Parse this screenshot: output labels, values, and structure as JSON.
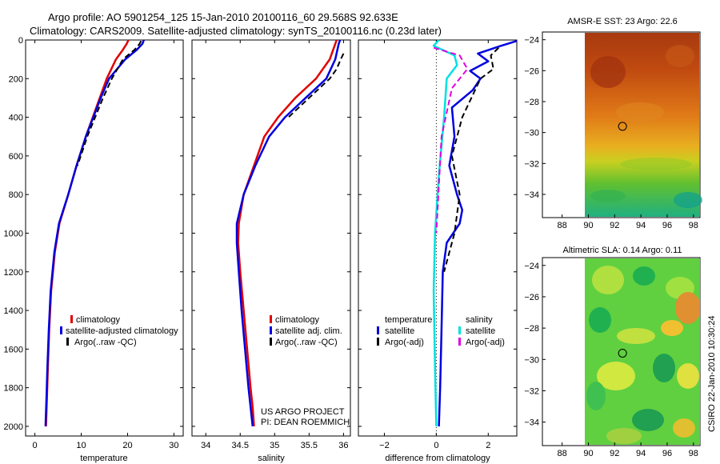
{
  "header": {
    "line1": "Argo profile: AO 5901254_125 15-Jan-2010 20100116_60 29.568S 92.633E",
    "line2": "Climatology: CARS2009. Satellite-adjusted climatology: synTS_20100116.nc (0.23d later)"
  },
  "colors": {
    "climatology": "#e00000",
    "satellite": "#0000e0",
    "argo": "#000000",
    "sal_satellite": "#00e0e0",
    "sal_argo": "#e000e0"
  },
  "chart_data": [
    {
      "type": "line",
      "id": "temperature",
      "xlabel": "temperature",
      "ylabel": "",
      "xlim": [
        -2,
        32
      ],
      "ylim": [
        2050,
        0
      ],
      "xticks": [
        0,
        10,
        20,
        30
      ],
      "yticks": [
        0,
        200,
        400,
        600,
        800,
        1000,
        1200,
        1400,
        1600,
        1800,
        2000
      ],
      "series": [
        {
          "name": "climatology",
          "color": "#e00000",
          "dashed": false,
          "x": [
            20.2,
            19.8,
            19.0,
            17.5,
            15.5,
            14.0,
            12.5,
            11.0,
            9.0,
            7.2,
            5.3,
            4.3,
            3.5,
            3.1,
            2.8,
            2.6,
            2.4
          ],
          "y": [
            0,
            20,
            50,
            100,
            200,
            300,
            400,
            500,
            650,
            800,
            950,
            1100,
            1300,
            1500,
            1700,
            1850,
            2000
          ]
        },
        {
          "name": "satellite-adjusted climatology",
          "color": "#0000e0",
          "dashed": false,
          "x": [
            23.5,
            23.2,
            22.0,
            19.5,
            16.0,
            14.2,
            12.6,
            11.0,
            9.0,
            7.2,
            5.2,
            4.2,
            3.4,
            3.0,
            2.7,
            2.5,
            2.3
          ],
          "y": [
            0,
            20,
            50,
            100,
            200,
            300,
            400,
            500,
            650,
            800,
            950,
            1100,
            1300,
            1500,
            1700,
            1850,
            2000
          ]
        },
        {
          "name": "Argo(..raw -QC)",
          "color": "#000000",
          "dashed": true,
          "x": [
            22.9,
            22.6,
            21.5,
            19.0,
            16.6,
            14.7,
            13.0,
            11.3,
            9.2
          ],
          "y": [
            5,
            20,
            50,
            100,
            200,
            300,
            400,
            500,
            650
          ]
        }
      ],
      "legend": [
        "climatology",
        "satellite-adjusted climatology",
        "Argo(..raw -QC)"
      ]
    },
    {
      "type": "line",
      "id": "salinity",
      "xlabel": "salinity",
      "ylabel": "",
      "xlim": [
        33.8,
        36.1
      ],
      "ylim": [
        2050,
        0
      ],
      "xticks": [
        34,
        34.5,
        35,
        35.5,
        36
      ],
      "series": [
        {
          "name": "climatology",
          "color": "#e00000",
          "dashed": false,
          "x": [
            35.9,
            35.88,
            35.8,
            35.6,
            35.3,
            35.05,
            34.85,
            34.7,
            34.55,
            34.48,
            34.47,
            34.5,
            34.55,
            34.6,
            34.65,
            34.68,
            34.7
          ],
          "y": [
            0,
            20,
            100,
            200,
            300,
            400,
            500,
            650,
            800,
            950,
            1050,
            1200,
            1400,
            1600,
            1800,
            1900,
            2000
          ]
        },
        {
          "name": "satellite adj. clim.",
          "color": "#0000e0",
          "dashed": false,
          "x": [
            35.95,
            35.93,
            35.88,
            35.75,
            35.45,
            35.15,
            34.92,
            34.72,
            34.55,
            34.45,
            34.45,
            34.48,
            34.52,
            34.57,
            34.62,
            34.65,
            34.68
          ],
          "y": [
            0,
            20,
            100,
            200,
            300,
            400,
            500,
            650,
            800,
            950,
            1050,
            1200,
            1400,
            1600,
            1800,
            1900,
            2000
          ]
        },
        {
          "name": "Argo(..raw -QC)",
          "color": "#000000",
          "dashed": true,
          "x": [
            36.0,
            35.96,
            35.9,
            35.8,
            35.5,
            35.2
          ],
          "y": [
            70,
            100,
            150,
            200,
            300,
            400
          ]
        }
      ],
      "legend": [
        "climatology",
        "satellite adj. clim.",
        "Argo(..raw -QC)"
      ],
      "annotation": [
        "US ARGO PROJECT",
        "PI: DEAN ROEMMICH"
      ]
    },
    {
      "type": "line",
      "id": "difference",
      "xlabel": "difference from climatology",
      "ylabel": "",
      "xlim": [
        -3,
        3.1
      ],
      "ylim": [
        2050,
        0
      ],
      "xticks": [
        -2,
        0,
        2
      ],
      "series": [
        {
          "name": "temperature satellite",
          "color": "#0000e0",
          "dashed": false,
          "x": [
            3.1,
            2.5,
            1.6,
            2.0,
            1.3,
            1.7,
            1.4,
            0.6,
            0.7,
            0.5,
            0.8,
            1.0,
            0.9,
            0.4,
            0.25,
            0.2,
            0.15,
            0.1
          ],
          "y": [
            5,
            30,
            70,
            110,
            160,
            200,
            260,
            350,
            500,
            650,
            800,
            880,
            950,
            1050,
            1200,
            1500,
            1800,
            2000
          ]
        },
        {
          "name": "temperature Argo(-adj)",
          "color": "#000000",
          "dashed": true,
          "x": [
            2.4,
            2.1,
            2.2,
            1.7,
            1.0,
            0.6,
            0.9,
            0.7,
            0.3
          ],
          "y": [
            40,
            80,
            150,
            200,
            400,
            600,
            800,
            1000,
            1200
          ]
        },
        {
          "name": "salinity satellite",
          "color": "#00e0e0",
          "dashed": false,
          "x": [
            0.1,
            -0.1,
            0.7,
            0.8,
            0.4,
            0.3,
            0.1,
            -0.05,
            -0.1,
            -0.05,
            0.0
          ],
          "y": [
            0,
            30,
            80,
            130,
            200,
            400,
            700,
            1000,
            1300,
            1700,
            2000
          ]
        },
        {
          "name": "salinity Argo(-adj)",
          "color": "#e000e0",
          "dashed": true,
          "x": [
            -0.1,
            0.9,
            1.2,
            0.6,
            0.2,
            0.0
          ],
          "y": [
            40,
            80,
            150,
            250,
            500,
            1000
          ]
        }
      ],
      "legend_title_left": "temperature",
      "legend_title_right": "salinity",
      "legend_left": [
        "satellite",
        "Argo(-adj)"
      ],
      "legend_right": [
        "satellite",
        "Argo(-adj)"
      ]
    },
    {
      "type": "heatmap",
      "id": "sst_map",
      "title": "AMSR-E SST: 23 Argo: 22.6",
      "xlim": [
        86.5,
        98.5
      ],
      "ylim": [
        -35.5,
        -23.5
      ],
      "xticks": [
        88,
        90,
        92,
        94,
        96,
        98
      ],
      "yticks": [
        -24,
        -26,
        -28,
        -30,
        -32,
        -34
      ],
      "marker": {
        "lon": 92.6,
        "lat": -29.6
      }
    },
    {
      "type": "heatmap",
      "id": "sla_map",
      "title": "Altimetric SLA: 0.14 Argo: 0.11",
      "xlim": [
        86.5,
        98.5
      ],
      "ylim": [
        -35.5,
        -23.5
      ],
      "xticks": [
        88,
        90,
        92,
        94,
        96,
        98
      ],
      "yticks": [
        -24,
        -26,
        -28,
        -30,
        -32,
        -34
      ],
      "marker": {
        "lon": 92.6,
        "lat": -29.6
      }
    }
  ],
  "footer": {
    "credit": "CSIRO 22-Jan-2010 10:30:24"
  }
}
